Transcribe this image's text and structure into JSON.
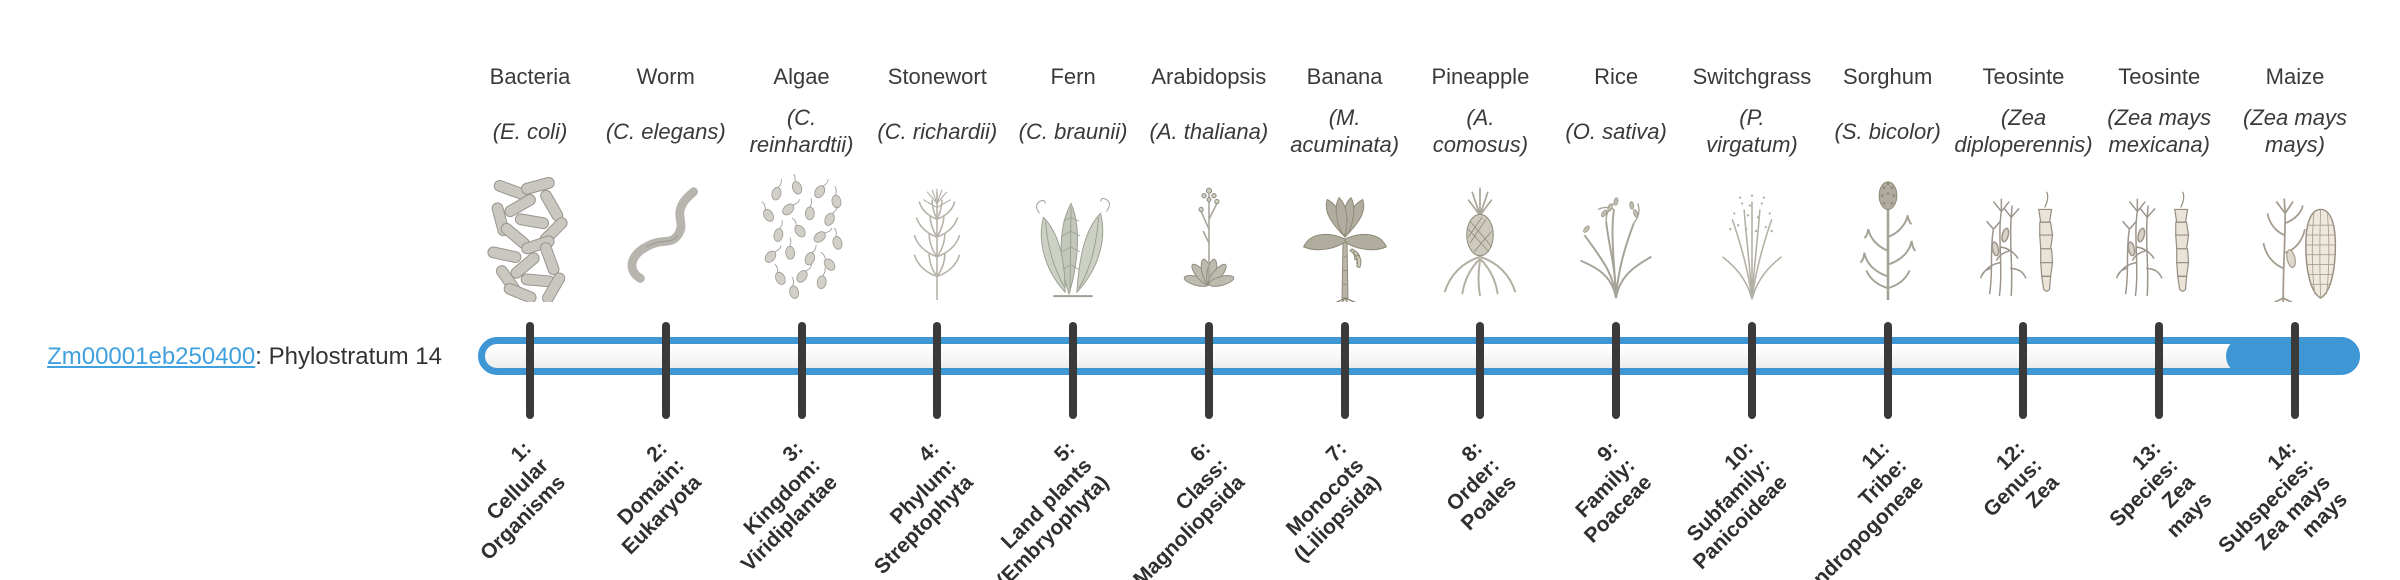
{
  "gene": {
    "id": "Zm00001eb250400",
    "suffix": ": Phylostratum 14",
    "phylostratum": 14
  },
  "timeline": {
    "bar_color": "#3e97d4",
    "tick_color": "#3a3a3b",
    "highlighted_stratum": 14,
    "total_strata": 14
  },
  "columns": [
    {
      "stratum": 1,
      "common": "Bacteria",
      "sci_lines": [
        "(E. coli)"
      ],
      "rank_lines": [
        "1:",
        "Cellular",
        "Organisms"
      ],
      "icon": "bacteria"
    },
    {
      "stratum": 2,
      "common": "Worm",
      "sci_lines": [
        "(C. elegans)"
      ],
      "rank_lines": [
        "2:",
        "Domain:",
        "Eukaryota"
      ],
      "icon": "worm"
    },
    {
      "stratum": 3,
      "common": "Algae",
      "sci_lines": [
        "(C.",
        "reinhardtii)"
      ],
      "rank_lines": [
        "3:",
        "Kingdom:",
        "Viridiplantae"
      ],
      "icon": "algae"
    },
    {
      "stratum": 4,
      "common": "Stonewort",
      "sci_lines": [
        "(C. richardii)"
      ],
      "rank_lines": [
        "4:",
        "Phylum:",
        "Streptophyta"
      ],
      "icon": "stonewort"
    },
    {
      "stratum": 5,
      "common": "Fern",
      "sci_lines": [
        "(C. braunii)"
      ],
      "rank_lines": [
        "5:",
        "Land plants",
        "(Embryophyta)"
      ],
      "icon": "fern"
    },
    {
      "stratum": 6,
      "common": "Arabidopsis",
      "sci_lines": [
        "(A. thaliana)"
      ],
      "rank_lines": [
        "6:",
        "Class:",
        "Magnoliopsida"
      ],
      "icon": "arabidopsis"
    },
    {
      "stratum": 7,
      "common": "Banana",
      "sci_lines": [
        "(M.",
        "acuminata)"
      ],
      "rank_lines": [
        "7:",
        "Monocots",
        "(Liliopsida)"
      ],
      "icon": "banana"
    },
    {
      "stratum": 8,
      "common": "Pineapple",
      "sci_lines": [
        "(A.",
        "comosus)"
      ],
      "rank_lines": [
        "8:",
        "Order:",
        "Poales"
      ],
      "icon": "pineapple"
    },
    {
      "stratum": 9,
      "common": "Rice",
      "sci_lines": [
        "(O. sativa)"
      ],
      "rank_lines": [
        "9:",
        "Family:",
        "Poaceae"
      ],
      "icon": "rice"
    },
    {
      "stratum": 10,
      "common": "Switchgrass",
      "sci_lines": [
        "(P.",
        "virgatum)"
      ],
      "rank_lines": [
        "10:",
        "Subfamily:",
        "Panicoideae"
      ],
      "icon": "switchgrass"
    },
    {
      "stratum": 11,
      "common": "Sorghum",
      "sci_lines": [
        "(S. bicolor)"
      ],
      "rank_lines": [
        "11:",
        "Tribe:",
        "Andropogoneae"
      ],
      "icon": "sorghum"
    },
    {
      "stratum": 12,
      "common": "Teosinte",
      "sci_lines": [
        "(Zea",
        "diploperennis)"
      ],
      "rank_lines": [
        "12:",
        "Genus:",
        "Zea"
      ],
      "icon": "teosinte"
    },
    {
      "stratum": 13,
      "common": "Teosinte",
      "sci_lines": [
        "(Zea mays",
        "mexicana)"
      ],
      "rank_lines": [
        "13:",
        "Species:",
        "Zea",
        "mays"
      ],
      "icon": "teosinte"
    },
    {
      "stratum": 14,
      "common": "Maize",
      "sci_lines": [
        "(Zea mays",
        "mays)"
      ],
      "rank_lines": [
        "14:",
        "Subspecies:",
        "Zea mays",
        "mays"
      ],
      "icon": "maize"
    }
  ]
}
